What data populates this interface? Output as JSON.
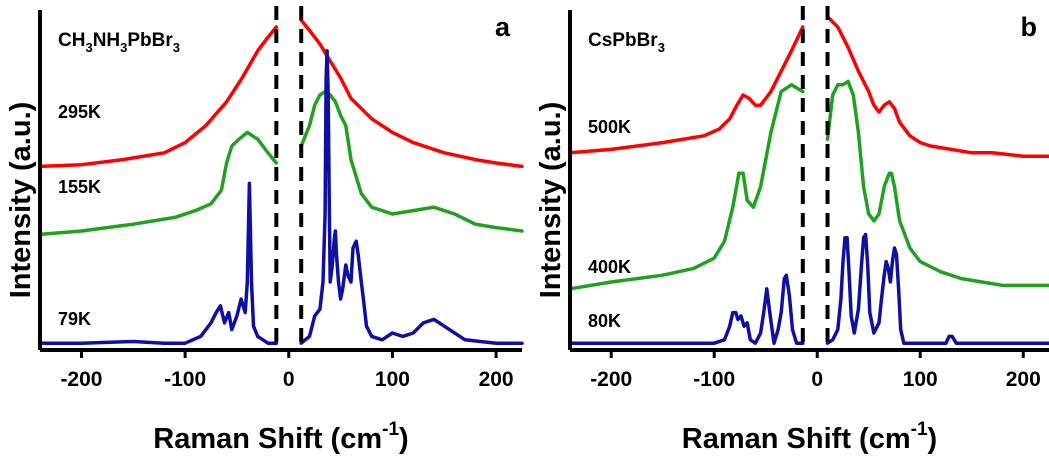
{
  "chart_data": [
    {
      "type": "line",
      "panel_label": "a",
      "compound": {
        "base": "CH",
        "s1": "3",
        "mid1": "NH",
        "s2": "3",
        "mid2": "PbBr",
        "s3": "3"
      },
      "xlabel": "Raman Shift (cm",
      "xlabel_sup": "-1",
      "xlabel_close": ")",
      "ylabel": "Intensity (a.u.)",
      "xlim": [
        -240,
        225
      ],
      "xticks": [
        -200,
        -100,
        0,
        100,
        200
      ],
      "xtick_labels": [
        "-200",
        "-100",
        "0",
        "100",
        "200"
      ],
      "cutoff_lines": [
        -12,
        12
      ],
      "grid": false,
      "series": [
        {
          "name": "295K",
          "color": "#ff0000",
          "x": [
            -240,
            -200,
            -160,
            -120,
            -100,
            -80,
            -60,
            -45,
            -30,
            -20,
            -12
          ],
          "y": [
            0.54,
            0.545,
            0.56,
            0.58,
            0.61,
            0.66,
            0.73,
            0.8,
            0.88,
            0.92,
            0.95
          ],
          "x2": [
            12,
            20,
            30,
            40,
            50,
            60,
            80,
            100,
            120,
            150,
            180,
            200,
            225
          ],
          "y2": [
            0.97,
            0.94,
            0.9,
            0.85,
            0.8,
            0.74,
            0.68,
            0.64,
            0.61,
            0.58,
            0.56,
            0.55,
            0.54
          ]
        },
        {
          "name": "155K",
          "color": "#22a022",
          "x": [
            -240,
            -200,
            -150,
            -110,
            -90,
            -75,
            -65,
            -60,
            -55,
            -48,
            -40,
            -30,
            -20,
            -12
          ],
          "y": [
            0.34,
            0.35,
            0.37,
            0.39,
            0.41,
            0.43,
            0.47,
            0.55,
            0.6,
            0.62,
            0.64,
            0.62,
            0.58,
            0.55
          ],
          "x2": [
            12,
            20,
            25,
            30,
            35,
            40,
            45,
            50,
            55,
            60,
            70,
            80,
            100,
            120,
            140,
            160,
            180,
            200,
            225
          ],
          "y2": [
            0.6,
            0.66,
            0.72,
            0.75,
            0.76,
            0.75,
            0.73,
            0.69,
            0.66,
            0.56,
            0.46,
            0.42,
            0.4,
            0.41,
            0.42,
            0.4,
            0.37,
            0.36,
            0.35
          ]
        },
        {
          "name": "79K",
          "color": "#1010a0",
          "x": [
            -240,
            -200,
            -150,
            -120,
            -100,
            -85,
            -75,
            -70,
            -66,
            -62,
            -58,
            -55,
            -50,
            -46,
            -42,
            -40,
            -38,
            -36,
            -34,
            -30,
            -25,
            -20,
            -12
          ],
          "y": [
            0.02,
            0.02,
            0.025,
            0.02,
            0.02,
            0.04,
            0.08,
            0.11,
            0.13,
            0.08,
            0.11,
            0.06,
            0.1,
            0.15,
            0.11,
            0.2,
            0.49,
            0.2,
            0.07,
            0.04,
            0.03,
            0.02,
            0.02
          ],
          "x2": [
            12,
            20,
            25,
            30,
            33,
            35,
            36,
            37,
            38,
            39,
            40,
            42,
            44,
            45,
            46,
            48,
            50,
            52,
            55,
            57,
            60,
            62,
            65,
            67,
            70,
            72,
            75,
            80,
            90,
            100,
            110,
            120,
            130,
            140,
            150,
            170,
            200,
            225
          ],
          "y2": [
            0.02,
            0.04,
            0.1,
            0.12,
            0.2,
            0.4,
            0.8,
            0.88,
            0.75,
            0.45,
            0.2,
            0.25,
            0.33,
            0.35,
            0.28,
            0.2,
            0.15,
            0.18,
            0.25,
            0.22,
            0.2,
            0.3,
            0.32,
            0.28,
            0.2,
            0.15,
            0.07,
            0.04,
            0.03,
            0.05,
            0.04,
            0.05,
            0.08,
            0.09,
            0.07,
            0.03,
            0.02,
            0.02
          ]
        }
      ]
    },
    {
      "type": "line",
      "panel_label": "b",
      "compound": {
        "base": "CsPbBr",
        "s1": "3"
      },
      "xlabel": "Raman Shift (cm",
      "xlabel_sup": "-1",
      "xlabel_close": ")",
      "ylabel": "Intensity (a.u.)",
      "xlim": [
        -240,
        225
      ],
      "xticks": [
        -200,
        -100,
        0,
        100,
        200
      ],
      "xtick_labels": [
        "-200",
        "-100",
        "0",
        "100",
        "200"
      ],
      "cutoff_lines": [
        -14,
        10
      ],
      "grid": false,
      "series": [
        {
          "name": "500K",
          "color": "#ff0000",
          "x": [
            -240,
            -200,
            -150,
            -110,
            -95,
            -85,
            -78,
            -72,
            -66,
            -60,
            -55,
            -45,
            -35,
            -25,
            -14
          ],
          "y": [
            0.58,
            0.59,
            0.61,
            0.63,
            0.65,
            0.68,
            0.72,
            0.75,
            0.74,
            0.72,
            0.72,
            0.76,
            0.82,
            0.88,
            0.95
          ],
          "x2": [
            10,
            20,
            30,
            40,
            50,
            55,
            60,
            65,
            70,
            75,
            80,
            90,
            100,
            110,
            130,
            150,
            170,
            200,
            225
          ],
          "y2": [
            0.98,
            0.95,
            0.89,
            0.82,
            0.76,
            0.72,
            0.7,
            0.72,
            0.73,
            0.71,
            0.67,
            0.63,
            0.61,
            0.6,
            0.59,
            0.58,
            0.58,
            0.57,
            0.57
          ]
        },
        {
          "name": "400K",
          "color": "#22a022",
          "x": [
            -240,
            -200,
            -150,
            -120,
            -100,
            -90,
            -82,
            -76,
            -72,
            -68,
            -62,
            -55,
            -45,
            -35,
            -25,
            -14
          ],
          "y": [
            0.18,
            0.2,
            0.22,
            0.24,
            0.27,
            0.32,
            0.42,
            0.52,
            0.52,
            0.44,
            0.42,
            0.48,
            0.64,
            0.76,
            0.78,
            0.76
          ],
          "x2": [
            10,
            15,
            20,
            25,
            30,
            35,
            40,
            45,
            50,
            55,
            60,
            65,
            70,
            72,
            75,
            80,
            90,
            100,
            120,
            140,
            160,
            180,
            200,
            225
          ],
          "y2": [
            0.62,
            0.75,
            0.78,
            0.78,
            0.79,
            0.75,
            0.64,
            0.48,
            0.4,
            0.38,
            0.4,
            0.48,
            0.52,
            0.52,
            0.48,
            0.38,
            0.3,
            0.26,
            0.23,
            0.21,
            0.2,
            0.19,
            0.19,
            0.19
          ]
        },
        {
          "name": "80K",
          "color": "#1010a0",
          "x": [
            -240,
            -200,
            -150,
            -120,
            -100,
            -90,
            -85,
            -82,
            -79,
            -77,
            -74,
            -71,
            -68,
            -65,
            -60,
            -55,
            -52,
            -49,
            -46,
            -42,
            -38,
            -35,
            -32,
            -30,
            -27,
            -24,
            -20,
            -14
          ],
          "y": [
            0.02,
            0.02,
            0.02,
            0.02,
            0.02,
            0.03,
            0.07,
            0.11,
            0.11,
            0.09,
            0.1,
            0.07,
            0.08,
            0.03,
            0.02,
            0.05,
            0.11,
            0.18,
            0.11,
            0.02,
            0.06,
            0.11,
            0.21,
            0.22,
            0.16,
            0.06,
            0.02,
            0.02
          ],
          "x2": [
            10,
            15,
            20,
            23,
            25,
            27,
            29,
            31,
            33,
            36,
            40,
            43,
            45,
            47,
            49,
            51,
            55,
            60,
            62,
            65,
            67,
            69,
            71,
            73,
            75,
            77,
            79,
            81,
            84,
            90,
            100,
            115,
            125,
            128,
            131,
            135,
            150,
            200,
            225
          ],
          "y2": [
            0.02,
            0.03,
            0.06,
            0.15,
            0.26,
            0.33,
            0.33,
            0.22,
            0.1,
            0.05,
            0.12,
            0.25,
            0.33,
            0.34,
            0.25,
            0.11,
            0.05,
            0.08,
            0.14,
            0.22,
            0.26,
            0.24,
            0.2,
            0.26,
            0.3,
            0.28,
            0.18,
            0.06,
            0.02,
            0.02,
            0.02,
            0.02,
            0.02,
            0.04,
            0.04,
            0.02,
            0.02,
            0.02,
            0.02
          ]
        }
      ]
    }
  ]
}
